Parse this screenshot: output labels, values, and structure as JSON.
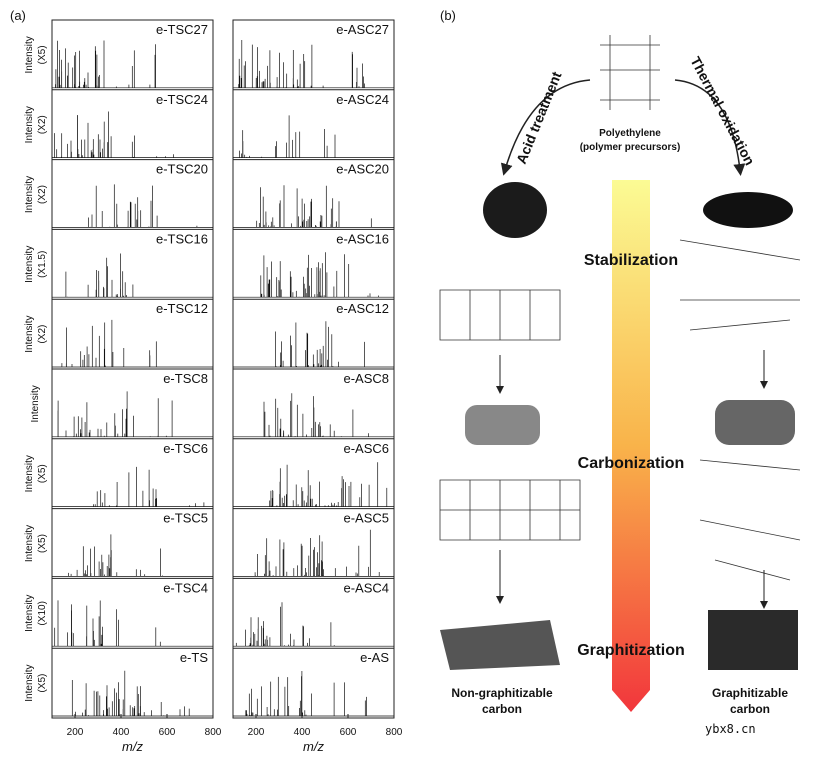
{
  "panel_a": {
    "label": "(a)",
    "xlabel": "m/z",
    "xlim": [
      100,
      800
    ],
    "xticks": [
      200,
      400,
      600,
      800
    ],
    "ylabel": "Intensity",
    "left": [
      {
        "name": "e-TSC27",
        "scale": "(X5)"
      },
      {
        "name": "e-TSC24",
        "scale": "(X2)"
      },
      {
        "name": "e-TSC20",
        "scale": "(X2)"
      },
      {
        "name": "e-TSC16",
        "scale": "(X1.5)"
      },
      {
        "name": "e-TSC12",
        "scale": "(X2)"
      },
      {
        "name": "e-TSC8"
      },
      {
        "name": "e-TSC6",
        "scale": "(X5)"
      },
      {
        "name": "e-TSC5",
        "scale": "(X5)"
      },
      {
        "name": "e-TSC4",
        "scale": "(X10)"
      },
      {
        "name": "e-TS",
        "scale": "(X5)"
      }
    ],
    "right": [
      {
        "name": "e-ASC27"
      },
      {
        "name": "e-ASC24"
      },
      {
        "name": "e-ASC20"
      },
      {
        "name": "e-ASC16"
      },
      {
        "name": "e-ASC12"
      },
      {
        "name": "e-ASC8"
      },
      {
        "name": "e-ASC6"
      },
      {
        "name": "e-ASC5"
      },
      {
        "name": "e-ASC4"
      },
      {
        "name": "e-AS"
      }
    ]
  },
  "panel_b": {
    "label": "(b)",
    "precursor": [
      "Polyethylene",
      "(polymer precursors)"
    ],
    "left_route": "Acid treatment",
    "right_route": "Thermal oxidation",
    "stages": [
      "Stabilization",
      "Carbonization",
      "Graphitization"
    ],
    "left_product": [
      "Non-graphitizable",
      "carbon"
    ],
    "right_product": [
      "Graphitizable",
      "carbon"
    ]
  },
  "watermark": "ybx8.cn"
}
